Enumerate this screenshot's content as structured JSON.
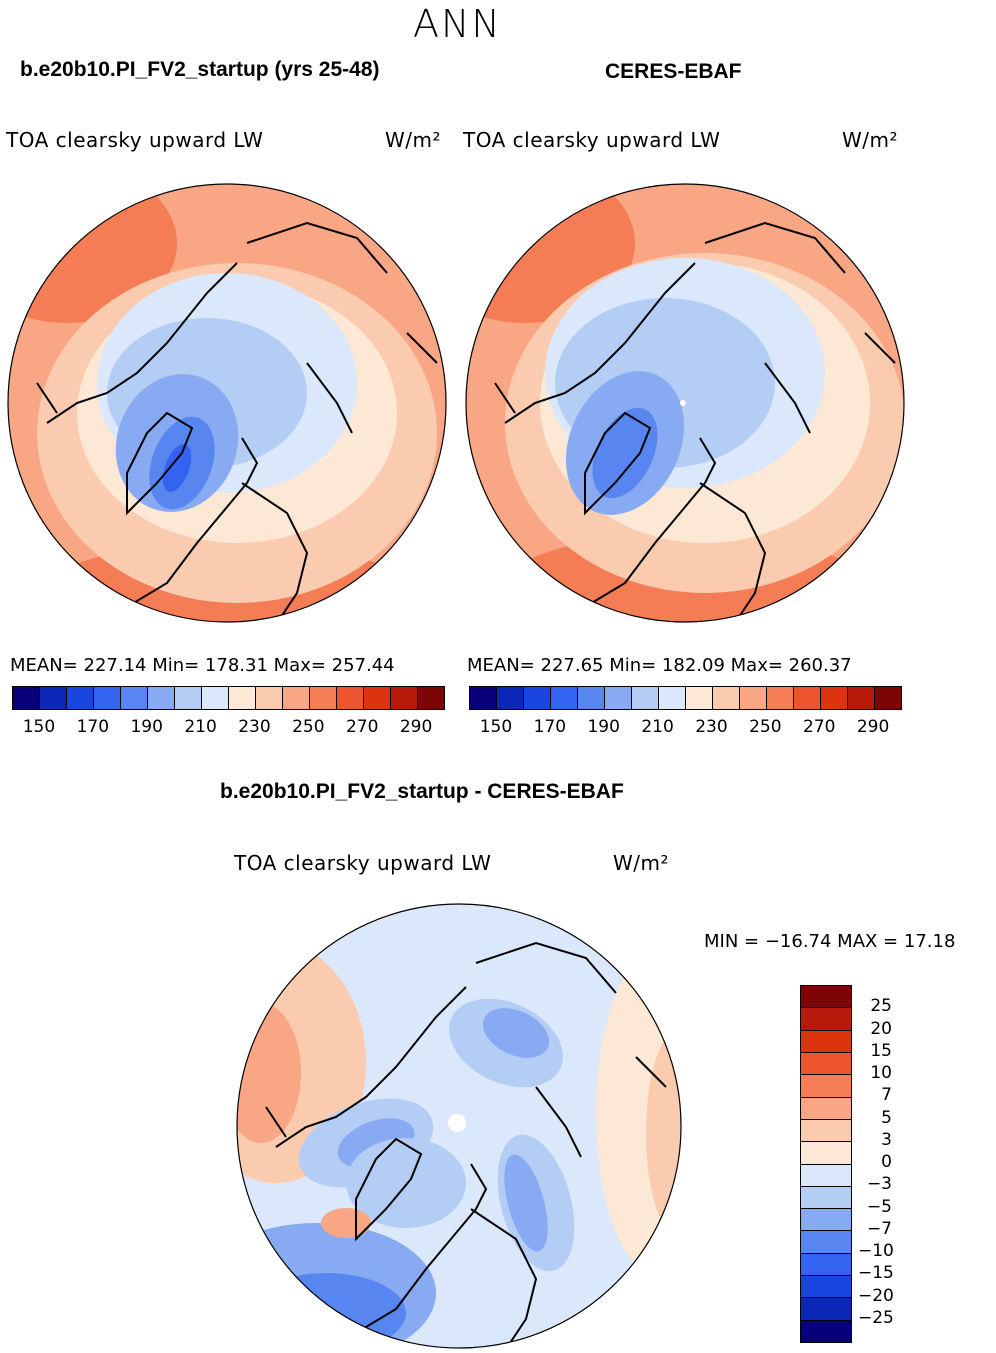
{
  "page": {
    "season": "ANN"
  },
  "panel_model": {
    "case_title": "b.e20b10.PI_FV2_startup (yrs 25-48)",
    "var_name": "TOA clearsky upward LW",
    "units": "W/m²",
    "stats": "MEAN= 227.14   Min= 178.31   Max= 257.44"
  },
  "panel_obs": {
    "case_title": "CERES-EBAF",
    "var_name": "TOA clearsky upward LW",
    "units": "W/m²",
    "stats": "MEAN= 227.65   Min= 182.09   Max= 260.37"
  },
  "panel_diff": {
    "case_title": "b.e20b10.PI_FV2_startup - CERES-EBAF",
    "var_name": "TOA clearsky upward LW",
    "units": "W/m²",
    "stats": "MIN = −16.74 MAX =   17.18"
  },
  "colorbar_abs": {
    "colors": [
      "#08007a",
      "#0a28b5",
      "#1a45e0",
      "#3363f0",
      "#5886f0",
      "#88aaf2",
      "#b4cdf5",
      "#dbe8fb",
      "#fde8d6",
      "#fbcbb0",
      "#f8a683",
      "#f47d55",
      "#ed5430",
      "#dd3410",
      "#b8190a",
      "#7e0505"
    ],
    "tick_labels": [
      "150",
      "170",
      "190",
      "210",
      "230",
      "250",
      "270",
      "290"
    ]
  },
  "colorbar_diff": {
    "colors": [
      "#7e0505",
      "#b8190a",
      "#dd3410",
      "#ed5430",
      "#f47d55",
      "#f8a683",
      "#fbcbb0",
      "#fde8d6",
      "#dbe8fb",
      "#b4cdf5",
      "#88aaf2",
      "#5886f0",
      "#3363f0",
      "#1a45e0",
      "#0a28b5",
      "#08007a"
    ],
    "tick_labels": [
      "25",
      "20",
      "15",
      "10",
      "7",
      "5",
      "3",
      "0",
      "−3",
      "−5",
      "−7",
      "−10",
      "−15",
      "−20",
      "−25"
    ]
  },
  "map_colors": {
    "ocean_warm": "#f8a683",
    "warm_deep": "#f47d55",
    "light_warm": "#fbcbb0",
    "neutral_warm": "#fde8d6",
    "neutral_cool": "#dbe8fb",
    "cool": "#b4cdf5",
    "cooler": "#88aaf2",
    "cold": "#5886f0",
    "coldest": "#3363f0"
  }
}
